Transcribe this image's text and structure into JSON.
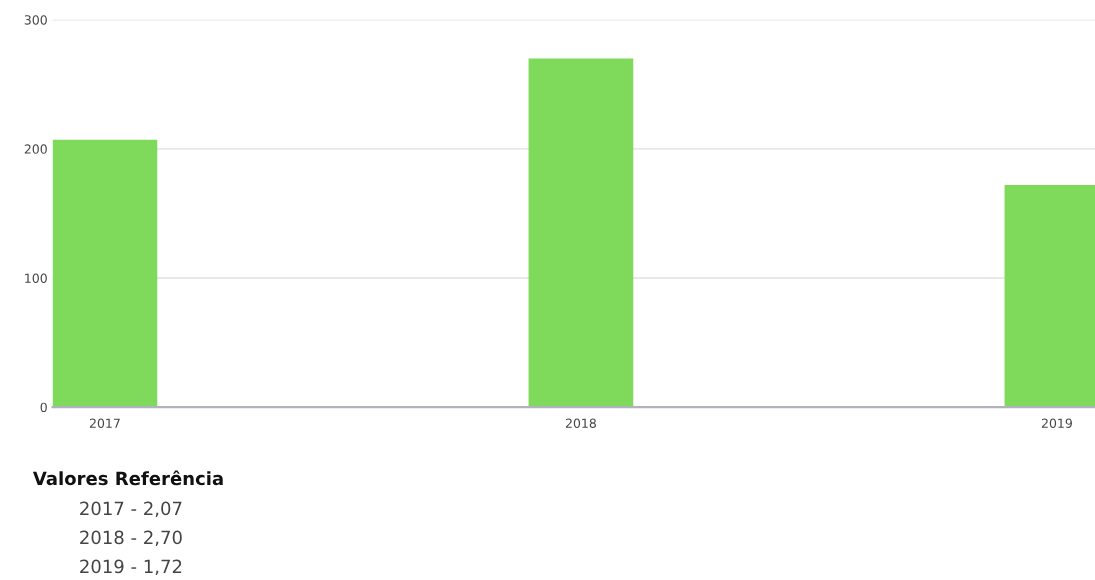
{
  "chart_data": {
    "type": "bar",
    "categories": [
      "2017",
      "2018",
      "2019"
    ],
    "values": [
      207,
      270,
      172
    ],
    "color": "#7fd95a",
    "ylim": [
      0,
      300
    ],
    "yticks": [
      0,
      100,
      200,
      300
    ],
    "grid": "y",
    "annotations": [
      "Valores Referência",
      "2017 - 2,07",
      "2018 - 2,70",
      "2019 - 1,72"
    ]
  }
}
